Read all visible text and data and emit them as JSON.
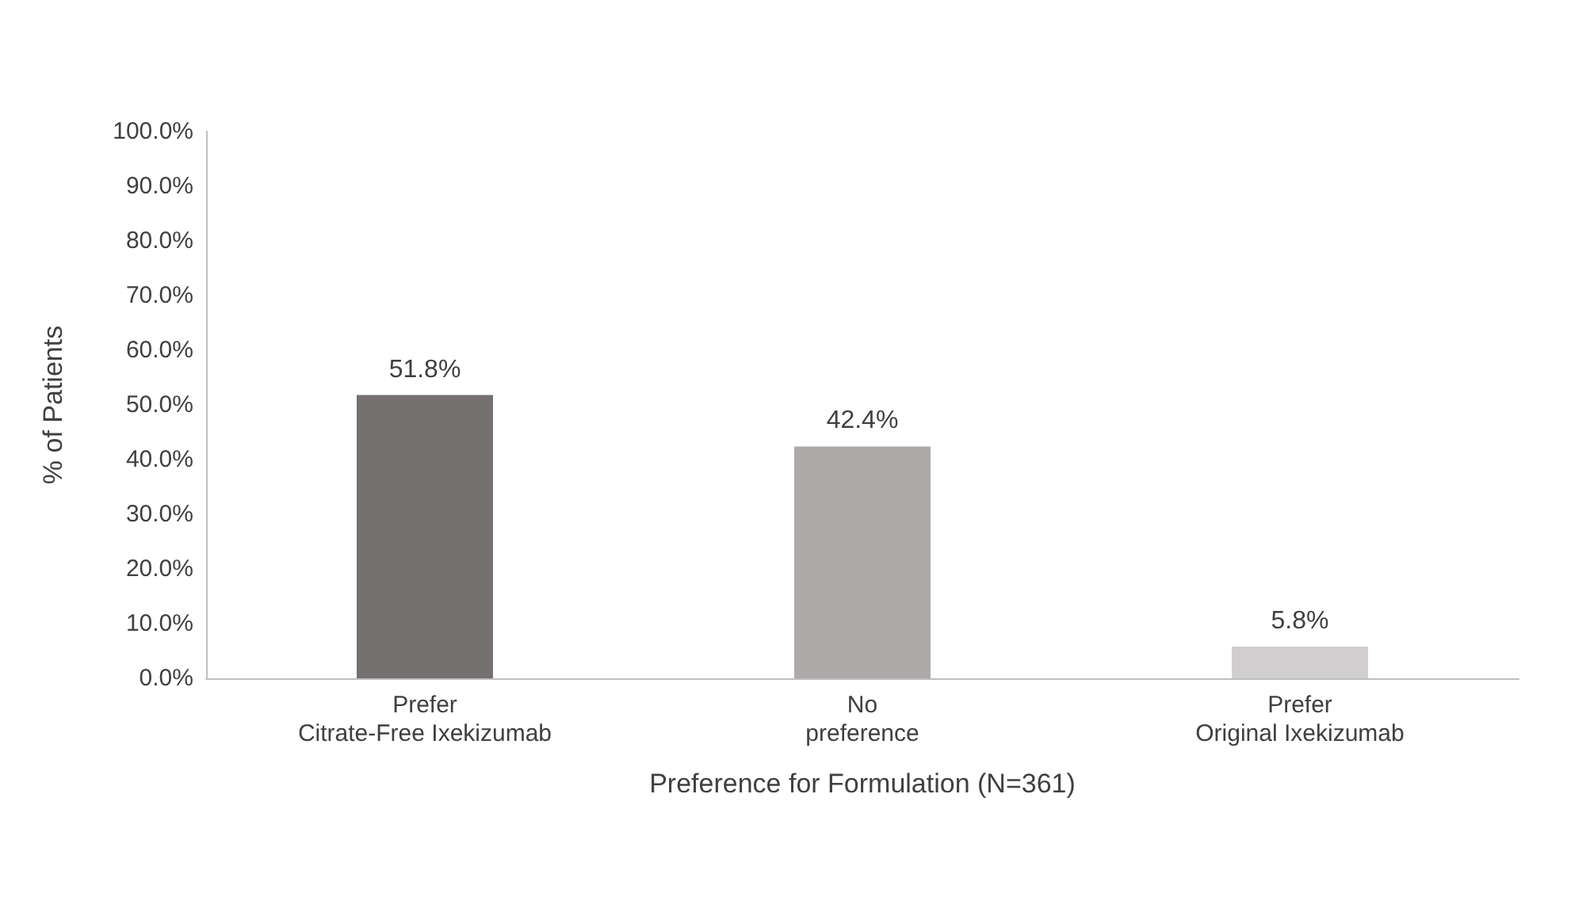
{
  "chart_data": {
    "type": "bar",
    "xlabel": "Preference for Formulation (N=361)",
    "ylabel": "% of Patients",
    "categories": [
      "Prefer\nCitrate-Free Ixekizumab",
      "No\npreference",
      "Prefer\nOriginal Ixekizumab"
    ],
    "values": [
      51.8,
      42.4,
      5.8
    ],
    "colors": [
      "#757171",
      "#aeaaaa",
      "#d0cece"
    ],
    "value_labels": [
      "51.8%",
      "42.4%",
      "5.8%"
    ],
    "ylim": [
      0,
      100
    ],
    "yticks": [
      {
        "value": 0,
        "label": "0.0%"
      },
      {
        "value": 10,
        "label": "10.0%"
      },
      {
        "value": 20,
        "label": "20.0%"
      },
      {
        "value": 30,
        "label": "30.0%"
      },
      {
        "value": 40,
        "label": "40.0%"
      },
      {
        "value": 50,
        "label": "50.0%"
      },
      {
        "value": 60,
        "label": "60.0%"
      },
      {
        "value": 70,
        "label": "70.0%"
      },
      {
        "value": 80,
        "label": "80.0%"
      },
      {
        "value": 90,
        "label": "90.0%"
      },
      {
        "value": 100,
        "label": "100.0%"
      }
    ],
    "grid": false
  }
}
